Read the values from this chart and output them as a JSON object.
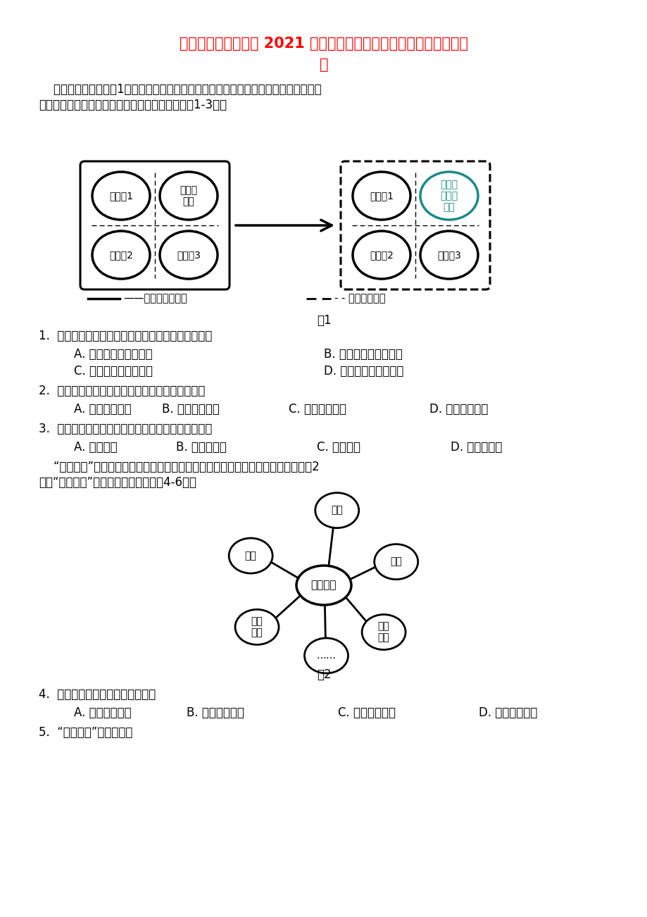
{
  "title_line1": "四川省成都市高新区 2021 届高三地理下学期第四次阶段质量检测试",
  "title_line2": "题",
  "title_color": "#FF0000",
  "bg_color": "#FFFFFF",
  "intro_text1": "    整建制拼合模式（图1）是我国部分大城市管辖区域内撤县设区的常见方式，该模式下",
  "intro_text2": "被撤县的行政名称改变，行政范围未变。据此完成1-3题。",
  "fig1_label": "图1",
  "legend1": "——县和区的边界线",
  "legend2": "- - 主城区边界线",
  "left_circles": [
    "市辖区1",
    "待撤县\n的县",
    "市辖区2",
    "市辖区3"
  ],
  "right_circles": [
    "市辖区1",
    "撤县设\n区的市\n辖区",
    "市辖区2",
    "市辖区3"
  ],
  "q1": "1.  我国部分大城市管辖区域内撤县设区的主要目的是",
  "q1a": "A. 扩大原县的管辖范围",
  "q1b": "B. 增强大城市竞争能力",
  "q1c": "C. 提高原县的服务范围",
  "q1d": "D. 增加大城市服务职能",
  "q2": "2.  对于大城市而言，整建制拼合模式初期可能导致",
  "q2a": "A. 就业压力增大",
  "q2b": "B. 区域间协调差",
  "q2c": "C. 环境污染加剧",
  "q2d": "D. 道路交通拥堵",
  "q3": "3.  整建制拼合模式有可能促使大城市空间结构发展为",
  "q3a": "A. 扇形模式",
  "q3b": "B. 同心圆模式",
  "q3c": "C. 田园模式",
  "q3d": "D. 多核心模式",
  "intro2_1": "    “共享村落”是盘活农村闲置宅基地和房屋资产，促进乡村振兴的一项创新举措。图2",
  "intro2_2": "示意“共享村落”的主要用途。据此完成4-6题。",
  "fig2_label": "图2",
  "center_label": "共享村落",
  "q4": "4.  导致农村房屋闲置的直接原因是",
  "q4a": "A. 社会服务短缺",
  "q4b": "B. 基础设施落后",
  "q4c": "C. 生态环境脆弱",
  "q4d": "D. 乡村人口迁移",
  "q5": "5.  “共享村落”建设，可以"
}
